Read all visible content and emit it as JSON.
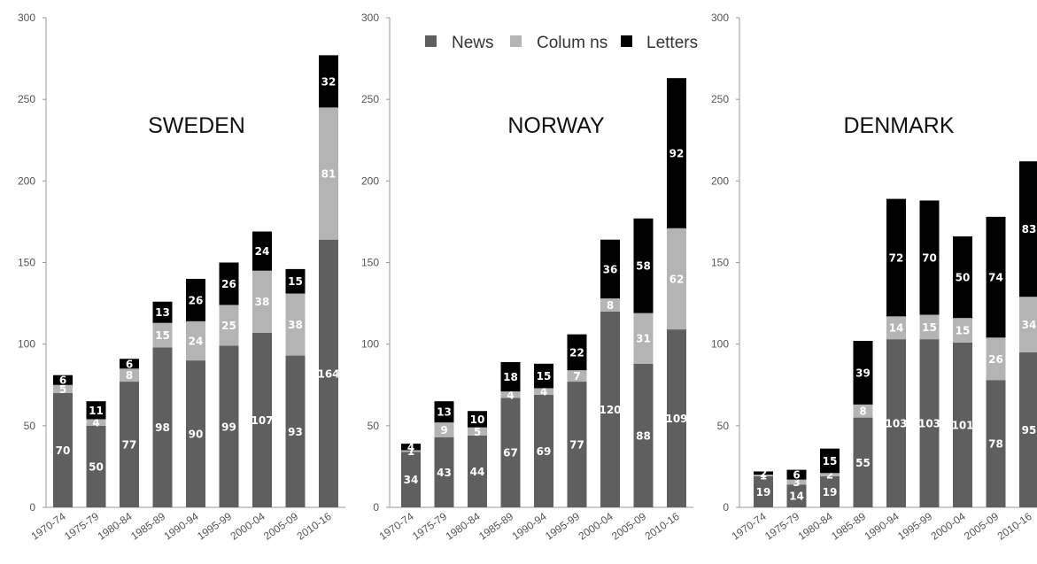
{
  "chart_data": [
    {
      "type": "bar",
      "stacked": true,
      "title": "SWEDEN",
      "categories": [
        "1970-74",
        "1975-79",
        "1980-84",
        "1985-89",
        "1990-94",
        "1995-99",
        "2000-04",
        "2005-09",
        "2010-16"
      ],
      "series": [
        {
          "name": "News",
          "color": "#5f5f5f",
          "values": [
            70,
            50,
            77,
            98,
            90,
            99,
            107,
            93,
            164
          ]
        },
        {
          "name": "Columns",
          "color": "#b4b4b4",
          "values": [
            5,
            4,
            8,
            15,
            24,
            25,
            38,
            38,
            81
          ]
        },
        {
          "name": "Letters",
          "color": "#000000",
          "values": [
            6,
            11,
            6,
            13,
            26,
            26,
            24,
            15,
            32
          ]
        }
      ],
      "ylim": [
        0,
        300
      ],
      "yticks": [
        "0",
        "50",
        "100",
        "150",
        "200",
        "250",
        "300"
      ]
    },
    {
      "type": "bar",
      "stacked": true,
      "title": "NORWAY",
      "categories": [
        "1970-74",
        "1975-79",
        "1980-84",
        "1985-89",
        "1990-94",
        "1995-99",
        "2000-04",
        "2005-09",
        "2010-16"
      ],
      "series": [
        {
          "name": "News",
          "color": "#5f5f5f",
          "values": [
            34,
            43,
            44,
            67,
            69,
            77,
            120,
            88,
            109
          ]
        },
        {
          "name": "Columns",
          "color": "#b4b4b4",
          "values": [
            1,
            9,
            5,
            4,
            4,
            7,
            8,
            31,
            62
          ]
        },
        {
          "name": "Letters",
          "color": "#000000",
          "values": [
            4,
            13,
            10,
            18,
            15,
            22,
            36,
            58,
            92
          ]
        }
      ],
      "ylim": [
        0,
        300
      ],
      "yticks": [
        "0",
        "50",
        "100",
        "150",
        "200",
        "250",
        "300"
      ]
    },
    {
      "type": "bar",
      "stacked": true,
      "title": "DENMARK",
      "categories": [
        "1970-74",
        "1975-79",
        "1980-84",
        "1985-89",
        "1990-94",
        "1995-99",
        "2000-04",
        "2005-09",
        "2010-16"
      ],
      "series": [
        {
          "name": "News",
          "color": "#5f5f5f",
          "values": [
            19,
            14,
            19,
            55,
            103,
            103,
            101,
            78,
            95
          ]
        },
        {
          "name": "Columns",
          "color": "#b4b4b4",
          "values": [
            1,
            3,
            2,
            8,
            14,
            15,
            15,
            26,
            34
          ]
        },
        {
          "name": "Letters",
          "color": "#000000",
          "values": [
            2,
            6,
            15,
            39,
            72,
            70,
            50,
            74,
            83
          ]
        }
      ],
      "ylim": [
        0,
        300
      ],
      "yticks": [
        "0",
        "50",
        "100",
        "150",
        "200",
        "250",
        "300"
      ]
    }
  ],
  "legend": {
    "placement": "top",
    "items": [
      {
        "label": "News",
        "color": "#5f5f5f"
      },
      {
        "label": "Colum ns",
        "color": "#b4b4b4"
      },
      {
        "label": "Letters",
        "color": "#000000"
      }
    ]
  }
}
